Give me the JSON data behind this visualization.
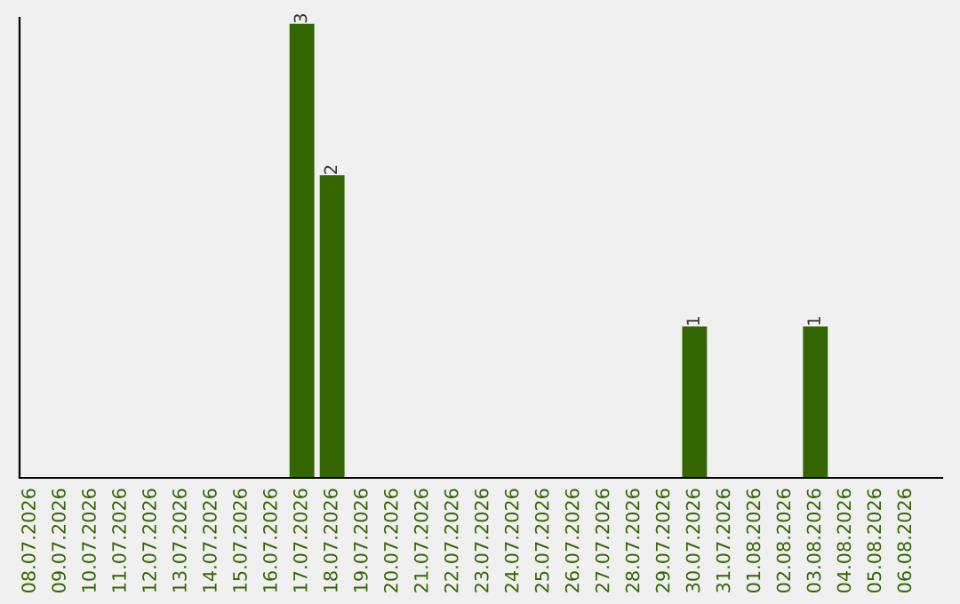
{
  "chart_data": {
    "type": "bar",
    "categories": [
      "08.07.2026",
      "09.07.2026",
      "10.07.2026",
      "11.07.2026",
      "12.07.2026",
      "13.07.2026",
      "14.07.2026",
      "15.07.2026",
      "16.07.2026",
      "17.07.2026",
      "18.07.2026",
      "19.07.2026",
      "20.07.2026",
      "21.07.2026",
      "22.07.2026",
      "23.07.2026",
      "24.07.2026",
      "25.07.2026",
      "26.07.2026",
      "27.07.2026",
      "28.07.2026",
      "29.07.2026",
      "30.07.2026",
      "31.07.2026",
      "01.08.2026",
      "02.08.2026",
      "03.08.2026",
      "04.08.2026",
      "05.08.2026",
      "06.08.2026"
    ],
    "values": [
      0,
      0,
      0,
      0,
      0,
      0,
      0,
      0,
      0,
      3,
      2,
      0,
      0,
      0,
      0,
      0,
      0,
      0,
      0,
      0,
      0,
      0,
      1,
      0,
      0,
      0,
      1,
      0,
      0,
      0
    ],
    "value_labels": [
      null,
      null,
      null,
      null,
      null,
      null,
      null,
      null,
      null,
      "3",
      "2",
      null,
      null,
      null,
      null,
      null,
      null,
      null,
      null,
      null,
      null,
      null,
      "1",
      null,
      null,
      null,
      "1",
      null,
      null,
      null
    ],
    "color": "#336600",
    "ylim": [
      0,
      3.04
    ],
    "tick_labels": "x",
    "grid": false,
    "legend": false
  }
}
